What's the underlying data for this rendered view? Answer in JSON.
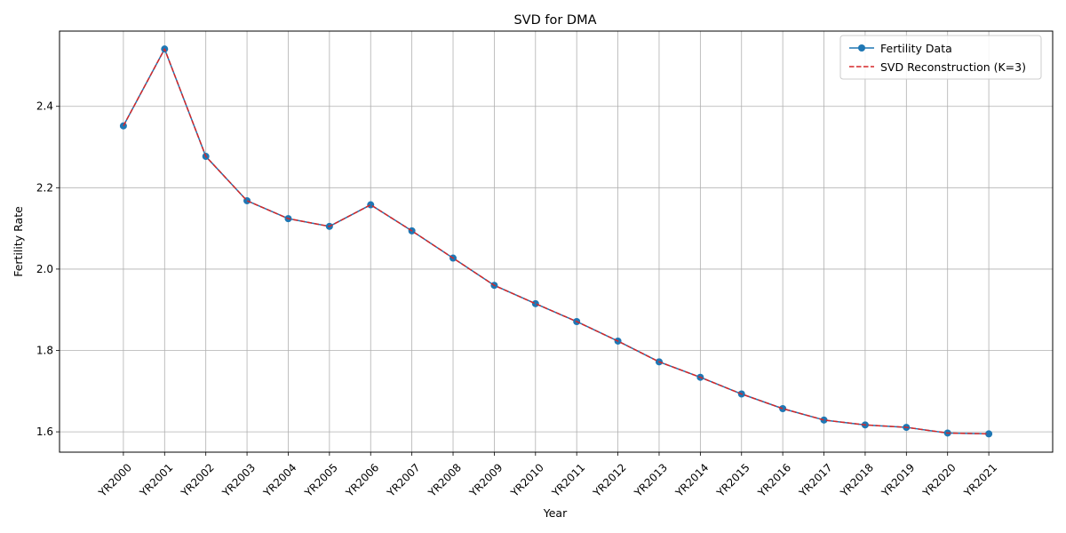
{
  "chart_data": {
    "type": "line",
    "title": "SVD for DMA",
    "xlabel": "Year",
    "ylabel": "Fertility Rate",
    "categories": [
      "YR2000",
      "YR2001",
      "YR2002",
      "YR2003",
      "YR2004",
      "YR2005",
      "YR2006",
      "YR2007",
      "YR2008",
      "YR2009",
      "YR2010",
      "YR2011",
      "YR2012",
      "YR2013",
      "YR2014",
      "YR2015",
      "YR2016",
      "YR2017",
      "YR2018",
      "YR2019",
      "YR2020",
      "YR2021"
    ],
    "yticks": [
      "1.6",
      "1.8",
      "2.0",
      "2.2",
      "2.4"
    ],
    "ylim": [
      1.55,
      2.585
    ],
    "grid": true,
    "legend_position": "top-right",
    "series": [
      {
        "name": "Fertility Data",
        "color": "#1f77b4",
        "style": "solid-with-circle-markers",
        "values": [
          2.352,
          2.541,
          2.277,
          2.168,
          2.124,
          2.105,
          2.158,
          2.094,
          2.027,
          1.96,
          1.915,
          1.871,
          1.823,
          1.772,
          1.734,
          1.693,
          1.657,
          1.629,
          1.617,
          1.611,
          1.597,
          1.595
        ]
      },
      {
        "name": "SVD Reconstruction (K=3)",
        "color": "#d62728",
        "style": "dashed",
        "values": [
          2.352,
          2.541,
          2.277,
          2.168,
          2.124,
          2.105,
          2.158,
          2.094,
          2.027,
          1.96,
          1.915,
          1.871,
          1.823,
          1.772,
          1.734,
          1.693,
          1.657,
          1.629,
          1.617,
          1.611,
          1.597,
          1.595
        ]
      }
    ]
  }
}
